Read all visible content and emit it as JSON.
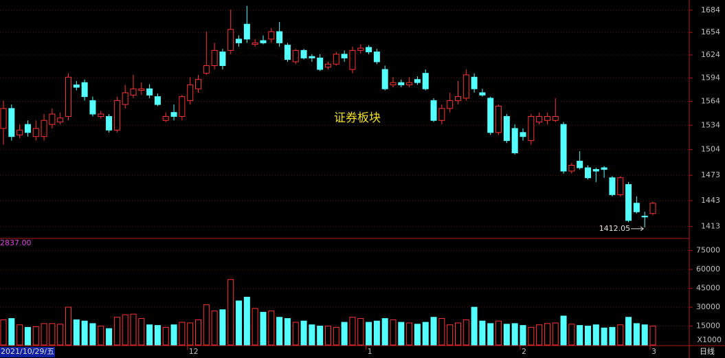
{
  "chart_data": [
    {
      "type": "candlestick",
      "title": "证券板块",
      "log": true,
      "grid": true,
      "up_color": "#ff3232",
      "down_color": "#54ffff",
      "categories": [
        "2021/10/29/五",
        null,
        null,
        null,
        null,
        null,
        null,
        null,
        null,
        null,
        null,
        null,
        null,
        null,
        null,
        null,
        null,
        null,
        null,
        null,
        null,
        null,
        null,
        "12",
        null,
        null,
        null,
        null,
        null,
        null,
        null,
        null,
        null,
        null,
        null,
        null,
        null,
        null,
        null,
        null,
        null,
        null,
        null,
        null,
        null,
        "1",
        null,
        null,
        null,
        null,
        null,
        null,
        null,
        null,
        null,
        null,
        null,
        null,
        null,
        null,
        null,
        null,
        null,
        null,
        "2",
        null,
        null,
        null,
        null,
        null,
        null,
        null,
        null,
        null,
        null,
        null,
        null,
        null,
        null,
        null,
        "3"
      ],
      "open": [
        1530,
        1555,
        1522,
        1535,
        1520,
        1520,
        1535,
        1538,
        1545,
        1585,
        1588,
        1565,
        1545,
        1545,
        1528,
        1560,
        1572,
        1578,
        1580,
        1570,
        1540,
        1550,
        1545,
        1565,
        1580,
        1600,
        1610,
        1628,
        1630,
        1645,
        1665,
        1638,
        1643,
        1645,
        1655,
        1637,
        1615,
        1630,
        1622,
        1620,
        1608,
        1612,
        1625,
        1605,
        1630,
        1634,
        1628,
        1605,
        1585,
        1588,
        1585,
        1592,
        1600,
        1565,
        1540,
        1555,
        1565,
        1568,
        1595,
        1575,
        1568,
        1525,
        1545,
        1530,
        1525,
        1515,
        1538,
        1540,
        1540,
        1535,
        1478,
        1490,
        1482,
        1480,
        1482,
        1470,
        1450,
        1462,
        1440,
        1425,
        1428
      ],
      "high": [
        1565,
        1560,
        1535,
        1540,
        1540,
        1548,
        1555,
        1550,
        1600,
        1590,
        1592,
        1570,
        1552,
        1548,
        1570,
        1585,
        1598,
        1588,
        1586,
        1574,
        1550,
        1560,
        1572,
        1595,
        1598,
        1655,
        1640,
        1632,
        1685,
        1650,
        1690,
        1645,
        1650,
        1660,
        1668,
        1640,
        1632,
        1632,
        1625,
        1625,
        1615,
        1628,
        1630,
        1635,
        1638,
        1637,
        1632,
        1610,
        1595,
        1592,
        1595,
        1596,
        1605,
        1568,
        1560,
        1575,
        1590,
        1605,
        1600,
        1580,
        1570,
        1560,
        1548,
        1535,
        1530,
        1548,
        1550,
        1550,
        1568,
        1538,
        1488,
        1502,
        1485,
        1482,
        1484,
        1472,
        1472,
        1465,
        1448,
        1430,
        1442
      ],
      "low": [
        1510,
        1515,
        1518,
        1520,
        1515,
        1515,
        1530,
        1535,
        1540,
        1578,
        1565,
        1545,
        1542,
        1525,
        1525,
        1555,
        1568,
        1572,
        1568,
        1558,
        1538,
        1540,
        1540,
        1560,
        1575,
        1598,
        1605,
        1605,
        1625,
        1635,
        1640,
        1635,
        1638,
        1640,
        1635,
        1615,
        1612,
        1618,
        1615,
        1603,
        1605,
        1610,
        1615,
        1600,
        1626,
        1625,
        1612,
        1578,
        1582,
        1582,
        1582,
        1585,
        1578,
        1538,
        1535,
        1550,
        1560,
        1565,
        1575,
        1570,
        1522,
        1522,
        1512,
        1498,
        1515,
        1510,
        1535,
        1535,
        1538,
        1475,
        1475,
        1480,
        1468,
        1465,
        1470,
        1448,
        1448,
        1418,
        1428,
        1412.05,
        1426
      ],
      "close": [
        1555,
        1520,
        1528,
        1525,
        1530,
        1540,
        1548,
        1543,
        1595,
        1582,
        1570,
        1548,
        1548,
        1528,
        1565,
        1575,
        1580,
        1580,
        1572,
        1560,
        1545,
        1545,
        1570,
        1585,
        1592,
        1610,
        1630,
        1610,
        1658,
        1640,
        1645,
        1640,
        1640,
        1655,
        1640,
        1618,
        1630,
        1620,
        1620,
        1605,
        1612,
        1625,
        1620,
        1630,
        1633,
        1628,
        1615,
        1580,
        1588,
        1585,
        1588,
        1588,
        1580,
        1540,
        1555,
        1565,
        1570,
        1598,
        1580,
        1572,
        1525,
        1558,
        1515,
        1500,
        1520,
        1545,
        1545,
        1545,
        1545,
        1478,
        1485,
        1482,
        1470,
        1478,
        1480,
        1450,
        1470,
        1420,
        1430,
        1424,
        1440
      ],
      "ylim": [
        1401,
        1698
      ],
      "yticks": [
        1413,
        1443,
        1473,
        1504,
        1534,
        1564,
        1594,
        1624,
        1654,
        1684
      ],
      "period": "日线"
    },
    {
      "type": "bar",
      "label": "2837.00",
      "unit": "X1000",
      "values": [
        20000,
        21000,
        16000,
        14000,
        14500,
        17000,
        17000,
        16500,
        30000,
        20000,
        19000,
        17000,
        15000,
        13000,
        22000,
        24000,
        24500,
        21000,
        16000,
        15500,
        14000,
        16000,
        18000,
        17500,
        20000,
        32000,
        27000,
        28000,
        52000,
        35000,
        38000,
        29000,
        26000,
        27000,
        22000,
        21000,
        18000,
        19000,
        16000,
        15000,
        15000,
        14000,
        18000,
        22000,
        21000,
        18000,
        19000,
        21000,
        20000,
        18000,
        17500,
        16500,
        18000,
        22000,
        21000,
        16000,
        17500,
        20000,
        30000,
        19000,
        17000,
        19000,
        16500,
        17000,
        15500,
        14000,
        16000,
        17000,
        17500,
        23000,
        16500,
        15500,
        15000,
        16000,
        13500,
        14000,
        16000,
        22000,
        17000,
        16000,
        15000
      ],
      "ylim": [
        0,
        83000
      ],
      "yticks": [
        15000,
        30000,
        45000,
        60000,
        75000
      ]
    }
  ]
}
